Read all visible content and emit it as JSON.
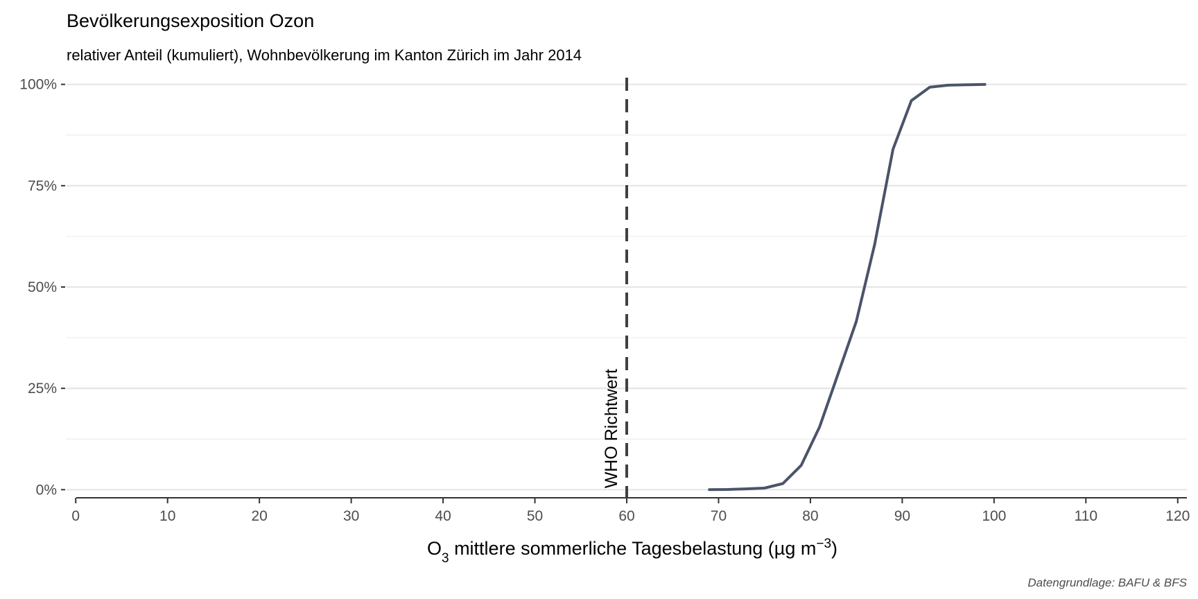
{
  "chart_data": {
    "type": "line",
    "title": "Bevölkerungsexposition Ozon",
    "subtitle": "relativer Anteil (kumuliert), Wohnbevölkerung im Kanton Zürich im Jahr 2014",
    "xlabel_main": "O",
    "xlabel_sub": "3",
    "xlabel_rest": " mittlere sommerliche Tagesbelastung (µg m",
    "xlabel_sup": "−3",
    "xlabel_close": ")",
    "caption": "Datengrundlage: BAFU & BFS",
    "xlim": [
      -1,
      121
    ],
    "ylim": [
      -0.02,
      1.02
    ],
    "x_ticks": [
      0,
      10,
      20,
      30,
      40,
      50,
      60,
      70,
      80,
      90,
      100,
      110,
      120
    ],
    "x_tick_labels": [
      "0",
      "10",
      "20",
      "30",
      "40",
      "50",
      "60",
      "70",
      "80",
      "90",
      "100",
      "110",
      "120"
    ],
    "y_ticks": [
      0,
      0.25,
      0.5,
      0.75,
      1
    ],
    "y_tick_labels": [
      "0%",
      "25%",
      "50%",
      "75%",
      "100%"
    ],
    "y_minor_ticks": [
      0.125,
      0.375,
      0.625,
      0.875
    ],
    "grid": true,
    "series": [
      {
        "color": "#4a5469",
        "x": [
          69,
          71,
          73,
          75,
          77,
          79,
          81,
          83,
          85,
          87,
          89,
          91,
          93,
          95,
          97,
          99
        ],
        "y": [
          0.0,
          0.0005,
          0.002,
          0.004,
          0.015,
          0.06,
          0.155,
          0.285,
          0.415,
          0.605,
          0.84,
          0.96,
          0.993,
          0.998,
          0.999,
          1.0
        ]
      }
    ],
    "reference_line": {
      "x": 60,
      "label": "WHO Richtwert",
      "style": "dashed",
      "color": "#404040"
    }
  }
}
